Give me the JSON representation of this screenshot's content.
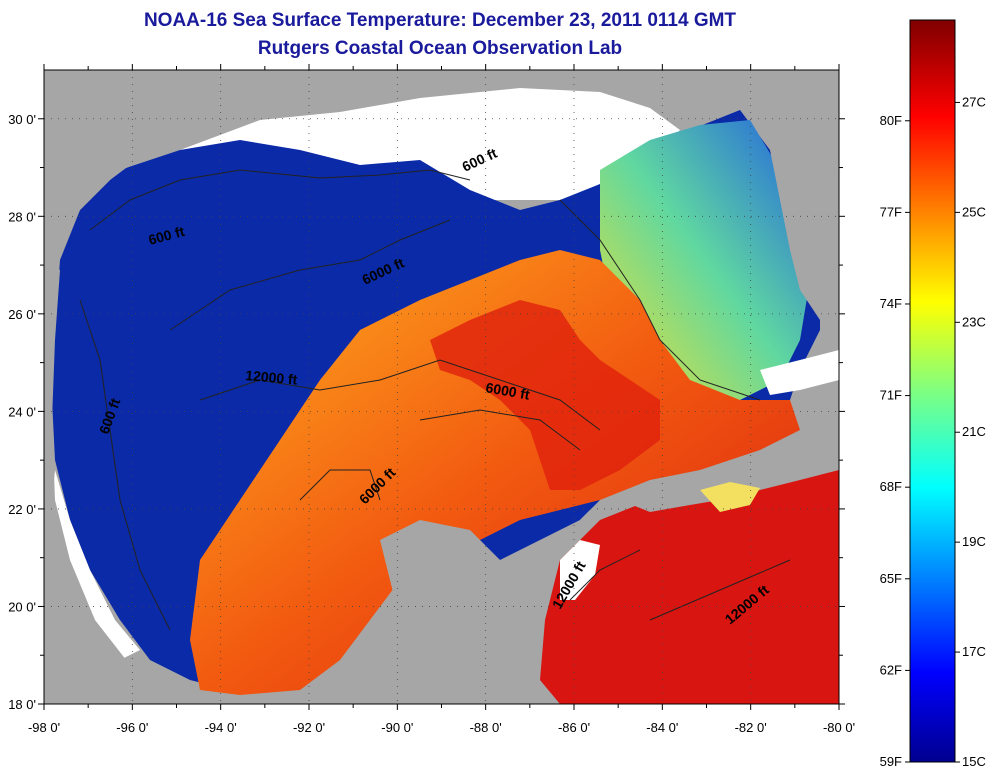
{
  "header": {
    "title": "NOAA-16 Sea Surface Temperature:  December 23, 2011 0114 GMT",
    "subtitle": "Rutgers Coastal Ocean Observation Lab"
  },
  "map": {
    "region": "Gulf of Mexico",
    "lon_range": [
      -98,
      -80
    ],
    "lat_range": [
      18,
      31
    ],
    "x_ticks": [
      "-98 0'",
      "-96 0'",
      "-94 0'",
      "-92 0'",
      "-90 0'",
      "-88 0'",
      "-86 0'",
      "-84 0'",
      "-82 0'",
      "-80 0'"
    ],
    "y_ticks": [
      "30 0'",
      "28 0'",
      "26 0'",
      "24 0'",
      "22 0'",
      "20 0'",
      "18 0'"
    ],
    "contour_labels": [
      "600 ft",
      "600 ft",
      "6000 ft",
      "12000 ft",
      "6000 ft",
      "600 ft",
      "6000 ft",
      "12000 ft",
      "12000 ft"
    ],
    "colors": {
      "land": "#a6a6a6",
      "cloud": "#ffffff",
      "cold": "#0a1ea0",
      "warm": "#e8300c"
    }
  },
  "colorbar": {
    "fahrenheit_labels": [
      "80F",
      "77F",
      "74F",
      "71F",
      "68F",
      "65F",
      "62F",
      "59F"
    ],
    "celsius_labels": [
      "27C",
      "25C",
      "23C",
      "21C",
      "19C",
      "17C",
      "15C"
    ],
    "range_c": [
      15,
      28.5
    ]
  }
}
